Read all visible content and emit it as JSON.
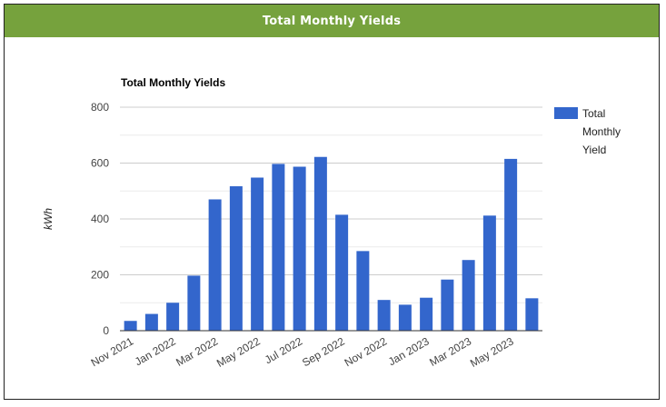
{
  "header": {
    "title": "Total Monthly Yields"
  },
  "colors": {
    "header_bg": "#76a23d",
    "bar": "#3366cc"
  },
  "chart_data": {
    "type": "bar",
    "title": "Total Monthly Yields",
    "xlabel": "",
    "ylabel": "kWh",
    "ylim": [
      0,
      800
    ],
    "yticks": [
      0,
      200,
      400,
      600,
      800
    ],
    "grid": true,
    "legend_position": "right",
    "categories": [
      "Nov 2021",
      "Dec 2021",
      "Jan 2022",
      "Feb 2022",
      "Mar 2022",
      "Apr 2022",
      "May 2022",
      "Jun 2022",
      "Jul 2022",
      "Aug 2022",
      "Sep 2022",
      "Oct 2022",
      "Nov 2022",
      "Dec 2022",
      "Jan 2023",
      "Feb 2023",
      "Mar 2023",
      "Apr 2023",
      "May 2023",
      "Jun 2023"
    ],
    "tick_labels": [
      "Nov 2021",
      "",
      "Jan 2022",
      "",
      "Mar 2022",
      "",
      "May 2022",
      "",
      "Jul 2022",
      "",
      "Sep 2022",
      "",
      "Nov 2022",
      "",
      "Jan 2023",
      "",
      "Mar 2023",
      "",
      "May 2023",
      ""
    ],
    "series": [
      {
        "name": "Total Monthly Yield",
        "color": "#3366cc",
        "values": [
          35,
          60,
          100,
          197,
          470,
          517,
          548,
          597,
          587,
          622,
          415,
          285,
          110,
          93,
          118,
          183,
          253,
          412,
          615,
          116
        ]
      }
    ]
  }
}
